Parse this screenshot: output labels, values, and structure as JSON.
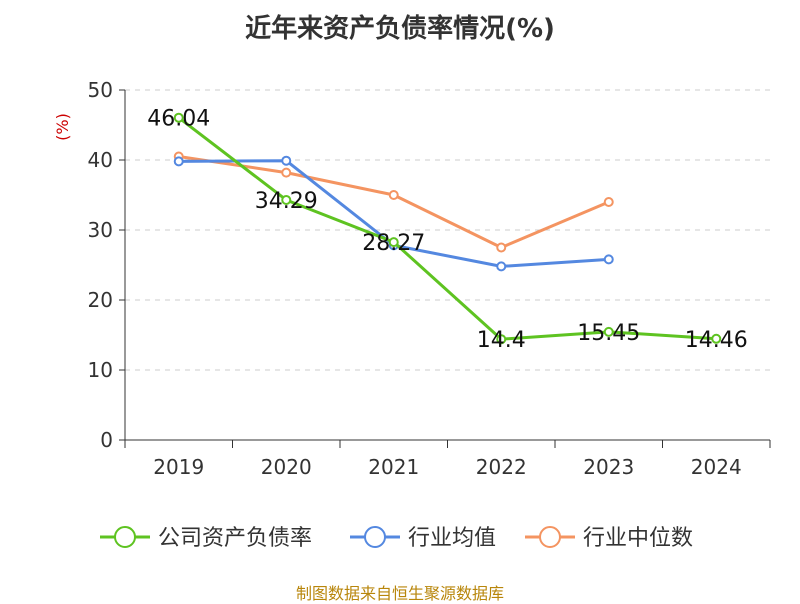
{
  "chart_data": {
    "type": "line",
    "title": "近年来资产负债率情况(%)",
    "ylabel": "(%)",
    "categories": [
      "2019",
      "2020",
      "2021",
      "2022",
      "2023",
      "2024"
    ],
    "ylim": [
      0,
      50
    ],
    "yticks": [
      0,
      10,
      20,
      30,
      40,
      50
    ],
    "grid": true,
    "legend_position": "bottom",
    "series": [
      {
        "name": "公司资产负债率",
        "color": "#5ec321",
        "values": [
          46.04,
          34.29,
          28.27,
          14.4,
          15.45,
          14.46
        ],
        "labels": [
          "46.04",
          "34.29",
          "28.27",
          "14.4",
          "15.45",
          "14.46"
        ]
      },
      {
        "name": "行业均值",
        "color": "#5488e0",
        "values": [
          39.8,
          39.9,
          27.8,
          24.8,
          25.8,
          null
        ]
      },
      {
        "name": "行业中位数",
        "color": "#f49461",
        "values": [
          40.5,
          38.2,
          35.0,
          27.5,
          34.0,
          null
        ]
      }
    ]
  },
  "footer": {
    "source": "制图数据来自恒生聚源数据库"
  }
}
